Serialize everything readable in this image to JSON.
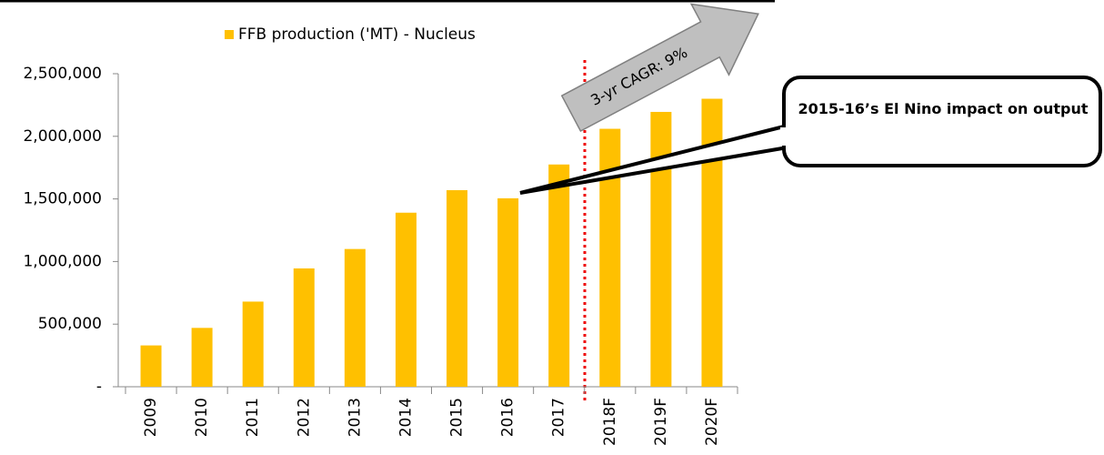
{
  "chart_data": {
    "type": "bar",
    "categories": [
      "2009",
      "2010",
      "2011",
      "2012",
      "2013",
      "2014",
      "2015",
      "2016",
      "2017",
      "2018F",
      "2019F",
      "2020F"
    ],
    "series": [
      {
        "name": "FFB production ('MT) - Nucleus",
        "color": "#ffc000",
        "values": [
          330000,
          470000,
          680000,
          945000,
          1100000,
          1390000,
          1570000,
          1505000,
          1775000,
          2060000,
          2195000,
          2300000
        ]
      }
    ],
    "ylim": [
      0,
      2500000
    ],
    "yticks": [
      {
        "value": 0,
        "label": "-"
      },
      {
        "value": 500000,
        "label": "500,000"
      },
      {
        "value": 1000000,
        "label": "1,000,000"
      },
      {
        "value": 1500000,
        "label": "1,500,000"
      },
      {
        "value": 2000000,
        "label": "2,000,000"
      },
      {
        "value": 2500000,
        "label": "2,500,000"
      }
    ],
    "annotations": [
      "3-yr CAGR: 9%",
      "2015-16’s El Nino impact on output"
    ]
  }
}
